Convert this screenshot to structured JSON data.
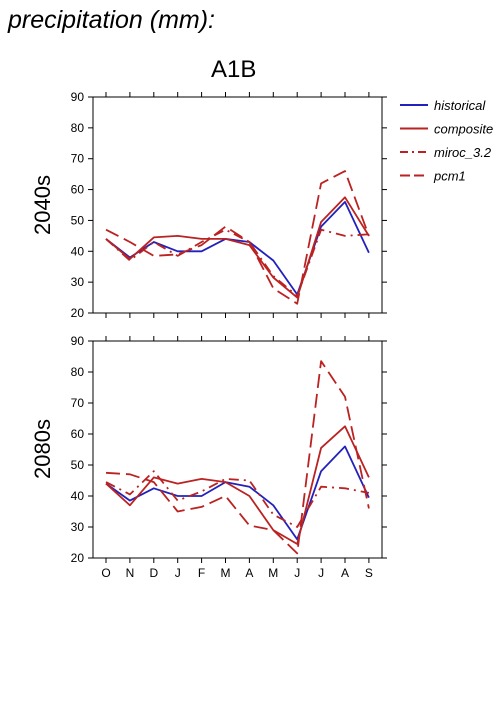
{
  "figure_title": "precipitation (mm):",
  "scenario": "A1B",
  "legend": [
    {
      "label": "historical",
      "color": "#2222bb",
      "dash": "solid"
    },
    {
      "label": "composite",
      "color": "#bb2222",
      "dash": "solid"
    },
    {
      "label": "miroc_3.2",
      "color": "#bb2222",
      "dash": "dashdot"
    },
    {
      "label": "pcm1",
      "color": "#bb2222",
      "dash": "dashed"
    }
  ],
  "chart_data": [
    {
      "type": "line",
      "panel_label": "2040s",
      "categories": [
        "O",
        "N",
        "D",
        "J",
        "F",
        "M",
        "A",
        "M",
        "J",
        "J",
        "A",
        "S"
      ],
      "ylim": [
        20,
        90
      ],
      "yticks": [
        20,
        30,
        40,
        50,
        60,
        70,
        80,
        90
      ],
      "series": [
        {
          "name": "historical",
          "values": [
            44,
            38,
            43,
            40,
            40,
            44,
            43,
            37,
            26,
            48,
            56,
            39.5
          ]
        },
        {
          "name": "composite",
          "values": [
            44,
            37.5,
            44.5,
            45,
            44,
            44,
            42,
            31.5,
            25,
            49.5,
            57.5,
            45
          ]
        },
        {
          "name": "miroc_3.2",
          "values": [
            44,
            37,
            43,
            38.5,
            43,
            47,
            43,
            32,
            25.5,
            47,
            45,
            45.5
          ]
        },
        {
          "name": "pcm1",
          "values": [
            47,
            43,
            38.5,
            39,
            42,
            48,
            43,
            28,
            23,
            62,
            66,
            45
          ]
        }
      ]
    },
    {
      "type": "line",
      "panel_label": "2080s",
      "categories": [
        "O",
        "N",
        "D",
        "J",
        "F",
        "M",
        "A",
        "M",
        "J",
        "J",
        "A",
        "S"
      ],
      "ylim": [
        20,
        90
      ],
      "yticks": [
        20,
        30,
        40,
        50,
        60,
        70,
        80,
        90
      ],
      "series": [
        {
          "name": "historical",
          "values": [
            44,
            38.5,
            42.5,
            40,
            40,
            44.5,
            43,
            37,
            26,
            48,
            56,
            39.5
          ]
        },
        {
          "name": "composite",
          "values": [
            44,
            37,
            46,
            44,
            45.5,
            44.5,
            40,
            29,
            24.5,
            55.5,
            62.5,
            46
          ]
        },
        {
          "name": "miroc_3.2",
          "values": [
            44.5,
            40.5,
            48,
            38.5,
            41.5,
            45.5,
            45,
            34,
            30,
            43,
            42.5,
            41
          ]
        },
        {
          "name": "pcm1",
          "values": [
            47.5,
            47,
            44.5,
            35,
            36.5,
            40,
            30.5,
            29,
            21.5,
            83.5,
            72,
            36
          ]
        }
      ]
    }
  ]
}
